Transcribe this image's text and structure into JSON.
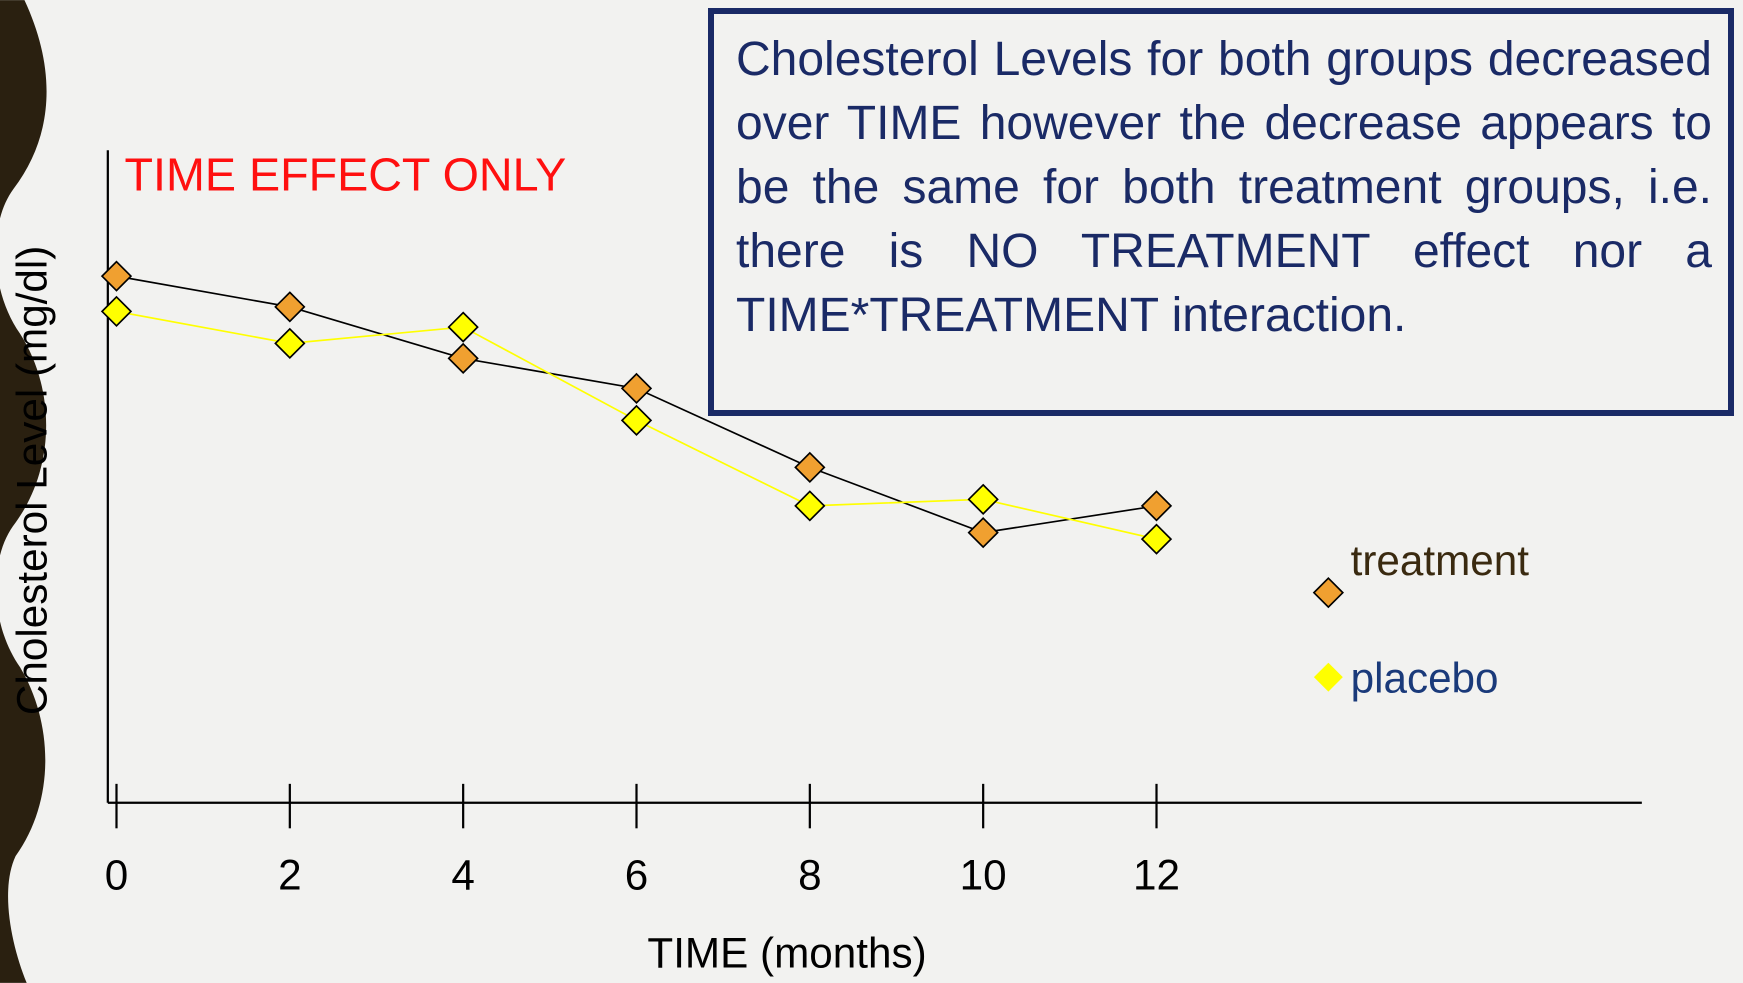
{
  "chart_data": {
    "type": "line",
    "title": "TIME EFFECT ONLY",
    "x_label": "TIME (months)",
    "y_label": "Cholesterol Level (mg/dl)",
    "x": [
      0,
      2,
      4,
      6,
      8,
      10,
      12
    ],
    "xlim": [
      -0.1,
      17.6
    ],
    "xticks": [
      0,
      2,
      4,
      6,
      8,
      10,
      12
    ],
    "ylim": [
      0,
      100
    ],
    "legend": "right",
    "series": [
      {
        "name": "treatment",
        "color": "#f0a030",
        "line_color": "#000000",
        "label_color": "#3a2a10",
        "values": [
          80.7,
          76.0,
          68.1,
          63.5,
          51.4,
          41.4,
          45.5
        ]
      },
      {
        "name": "placebo",
        "color": "#ffff00",
        "line_color": "#ffff00",
        "label_color": "#1a3a7a",
        "values": [
          75.3,
          70.4,
          72.9,
          58.6,
          45.5,
          46.5,
          40.4
        ]
      }
    ],
    "annotation": "Cholesterol Levels for both groups decreased over TIME however the decrease appears to be the same for both treatment groups, i.e. there is NO TREATMENT effect nor a TIME*TREATMENT interaction."
  }
}
